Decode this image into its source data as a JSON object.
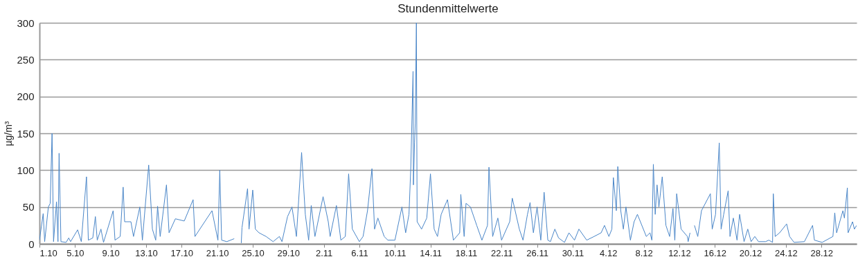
{
  "chart_data": {
    "type": "line",
    "title": "Stundenmittelwerte",
    "ylabel": "µg/m³",
    "x": [
      "--10-01T00:00",
      "--10-01T10:00",
      "--10-01T14:00",
      "--10-02T00:00",
      "--10-02T05:00",
      "--10-02T10:00",
      "--10-02T14:00",
      "--10-02T22:00",
      "--10-03T02:00",
      "--10-03T05:00",
      "--10-03T10:00",
      "--10-04T00:00",
      "--10-04T07:00",
      "--10-04T12:00",
      "--10-05T07:00",
      "--10-05T17:00",
      "--10-06T07:00",
      "--10-06T12:00",
      "--10-07T00:00",
      "--10-07T07:00",
      "--10-07T12:00",
      "--10-07T22:00",
      "--10-08T05:00",
      "--10-09T07:00",
      "--10-09T12:00",
      "--10-10T02:00",
      "--10-10T10:00",
      "--10-10T14:00",
      "--10-11T07:00",
      "--10-11T14:00",
      "--10-12T07:00",
      "--10-12T14:00",
      "--10-13T07:00",
      "--10-13T17:00",
      "--10-14T02:00",
      "--10-14T07:00",
      "--10-14T14:00",
      "--10-15T07:00",
      "--10-15T14:00",
      "--10-16T07:00",
      "--10-17T07:00",
      "--10-18T07:00",
      "--10-18T12:00",
      "--10-20T10:00",
      "--10-21T02:00",
      "--10-21T07:00",
      "--10-21T12:00",
      "--10-22T02:00",
      "--10-22T22:00",
      "--10-23T05:00",
      "--10-23T17:00",
      "--10-23T19:00",
      "--10-24T10:00",
      "--10-24T14:00",
      "--10-25T00:00",
      "--10-25T07:00",
      "--10-25T17:00",
      "--10-26T12:00",
      "--10-27T07:00",
      "--10-28T00:00",
      "--10-28T07:00",
      "--10-28T22:00",
      "--10-29T10:00",
      "--10-29T22:00",
      "--10-30T12:00",
      "--10-30T22:00",
      "--10-31T07:00",
      "--10-31T14:00",
      "--11-01T00:00",
      "--11-01T22:00",
      "--11-02T12:00",
      "--11-02T17:00",
      "--11-03T10:00",
      "--11-03T22:00",
      "--11-04T10:00",
      "--11-04T19:00",
      "--11-05T05:00",
      "--11-06T00:00",
      "--11-06T10:00",
      "--11-06T22:00",
      "--11-07T10:00",
      "--11-07T17:00",
      "--11-08T02:00",
      "--11-08T19:00",
      "--11-09T05:00",
      "--11-10T00:00",
      "--11-10T19:00",
      "--11-11T05:00",
      "--11-11T14:00",
      "--11-11T19:00",
      "--11-12T01:00",
      "--11-12T02:00",
      "--11-12T05:00",
      "--11-12T07:00",
      "--11-12T10:00",
      "--11-12T12:00",
      "--11-13T00:00",
      "--11-13T14:00",
      "--11-14T00:00",
      "--11-14T10:00",
      "--11-14T19:00",
      "--11-15T05:00",
      "--11-15T22:00",
      "--11-16T14:00",
      "--11-17T07:00",
      "--11-17T10:00",
      "--11-17T19:00",
      "--11-18T00:00",
      "--11-18T12:00",
      "--11-19T05:00",
      "--11-19T19:00",
      "--11-20T10:00",
      "--11-20T14:00",
      "--11-21T00:00",
      "--11-21T14:00",
      "--11-22T00:00",
      "--11-22T22:00",
      "--11-23T05:00",
      "--11-24T00:00",
      "--11-24T10:00",
      "--11-24T22:00",
      "--11-25T05:00",
      "--11-25T14:00",
      "--11-26T00:00",
      "--11-26T10:00",
      "--11-26T19:00",
      "--11-27T05:00",
      "--11-27T12:00",
      "--11-28T00:00",
      "--11-28T10:00",
      "--11-29T02:00",
      "--11-29T14:00",
      "--11-30T05:00",
      "--11-30T17:00",
      "--12-01T14:00",
      "--12-02T10:00",
      "--12-03T05:00",
      "--12-03T14:00",
      "--12-04T02:00",
      "--12-04T10:00",
      "--12-04T14:00",
      "--12-04T22:00",
      "--12-05T02:00",
      "--12-05T10:00",
      "--12-05T17:00",
      "--12-06T00:00",
      "--12-06T12:00",
      "--12-06T22:00",
      "--12-07T07:00",
      "--12-08T07:00",
      "--12-08T17:00",
      "--12-08T22:00",
      "--12-09T02:00",
      "--12-09T07:00",
      "--12-09T12:00",
      "--12-09T17:00",
      "--12-10T02:00",
      "--12-10T12:00",
      "--12-10T22:00",
      "--12-11T07:00",
      "--12-11T12:00",
      "--12-11T17:00",
      "--12-12T05:00",
      "--12-12T22:00",
      "--12-13T00:00",
      "--12-13T05:00",
      "--12-13T10:00",
      "--12-13T17:00",
      "--12-14T02:00",
      "--12-14T12:00",
      "--12-15T12:00",
      "--12-15T17:00",
      "--12-16T02:00",
      "--12-16T12:00",
      "--12-16T17:00",
      "--12-17T00:00",
      "--12-17T12:00",
      "--12-17T17:00",
      "--12-18T02:00",
      "--12-18T12:00",
      "--12-18T19:00",
      "--12-19T07:00",
      "--12-19T17:00",
      "--12-20T02:00",
      "--12-20T12:00",
      "--12-20T22:00",
      "--12-21T17:00",
      "--12-22T02:00",
      "--12-22T12:00",
      "--12-22T14:00",
      "--12-22T19:00",
      "--12-23T07:00",
      "--12-24T02:00",
      "--12-24T10:00",
      "--12-24T22:00",
      "--12-26T02:00",
      "--12-27T00:00",
      "--12-27T05:00",
      "--12-28T02:00",
      "--12-29T07:00",
      "--12-29T12:00",
      "--12-29T17:00",
      "--12-30T10:00",
      "--12-30T14:00",
      "--12-30T22:00",
      "--12-31T00:00",
      "--12-31T12:00",
      "--12-31T17:00",
      "--12-31T23:00"
    ],
    "series": [
      {
        "color": "#4a86c8",
        "values": [
          5,
          41,
          3,
          50,
          55,
          150,
          3,
          57,
          3,
          123,
          3,
          2,
          8,
          3,
          19,
          3,
          91,
          5,
          8,
          37,
          5,
          20,
          2,
          45,
          5,
          10,
          77,
          30,
          30,
          10,
          50,
          5,
          107,
          20,
          5,
          51,
          10,
          80,
          15,
          34,
          31,
          60,
          10,
          45,
          5,
          100,
          5,
          3,
          7,
          null,
          1,
          22,
          75,
          20,
          73,
          20,
          15,
          10,
          3,
          10,
          3,
          37,
          50,
          10,
          124,
          40,
          5,
          52,
          10,
          64,
          30,
          10,
          52,
          5,
          10,
          95,
          20,
          3,
          10,
          45,
          102,
          20,
          35,
          10,
          5,
          5,
          50,
          15,
          40,
          105,
          234,
          80,
          137,
          164,
          300,
          30,
          20,
          35,
          95,
          20,
          10,
          40,
          60,
          5,
          15,
          67,
          10,
          55,
          50,
          25,
          5,
          25,
          104,
          10,
          35,
          5,
          30,
          62,
          20,
          5,
          40,
          56,
          15,
          50,
          5,
          70,
          5,
          3,
          20,
          8,
          2,
          15,
          5,
          20,
          5,
          10,
          15,
          25,
          10,
          20,
          90,
          45,
          105,
          45,
          20,
          50,
          5,
          30,
          40,
          10,
          15,
          5,
          108,
          40,
          80,
          50,
          91,
          25,
          10,
          48,
          5,
          68,
          20,
          10,
          3,
          15,
          null,
          25,
          10,
          45,
          68,
          20,
          40,
          137,
          20,
          40,
          72,
          10,
          35,
          5,
          40,
          3,
          20,
          3,
          10,
          3,
          3,
          5,
          2,
          68,
          10,
          15,
          27,
          10,
          2,
          3,
          25,
          5,
          2,
          10,
          42,
          15,
          45,
          35,
          76,
          15,
          30,
          20,
          25
        ]
      }
    ],
    "xlim": [
      "--10-01T00:00",
      "--12-31T23:00"
    ],
    "xticks": [
      {
        "value": "--10-01",
        "label": "1.10"
      },
      {
        "value": "--10-05",
        "label": "5.10"
      },
      {
        "value": "--10-09",
        "label": "9.10"
      },
      {
        "value": "--10-13",
        "label": "13.10"
      },
      {
        "value": "--10-17",
        "label": "17.10"
      },
      {
        "value": "--10-21",
        "label": "21.10"
      },
      {
        "value": "--10-25",
        "label": "25.10"
      },
      {
        "value": "--10-29",
        "label": "29.10"
      },
      {
        "value": "--11-02",
        "label": "2.11"
      },
      {
        "value": "--11-06",
        "label": "6.11"
      },
      {
        "value": "--11-10",
        "label": "10.11"
      },
      {
        "value": "--11-14",
        "label": "14.11"
      },
      {
        "value": "--11-18",
        "label": "18.11"
      },
      {
        "value": "--11-22",
        "label": "22.11"
      },
      {
        "value": "--11-26",
        "label": "26.11"
      },
      {
        "value": "--11-30",
        "label": "30.11"
      },
      {
        "value": "--12-04",
        "label": "4.12"
      },
      {
        "value": "--12-08",
        "label": "8.12"
      },
      {
        "value": "--12-12",
        "label": "12.12"
      },
      {
        "value": "--12-16",
        "label": "16.12"
      },
      {
        "value": "--12-20",
        "label": "20.12"
      },
      {
        "value": "--12-24",
        "label": "24.12"
      },
      {
        "value": "--12-28",
        "label": "28.12"
      }
    ],
    "ylim": [
      0,
      300
    ],
    "yticks": [
      0,
      50,
      100,
      150,
      200,
      250,
      300
    ],
    "grid": "y",
    "marker": "none",
    "line_style": "solid"
  }
}
